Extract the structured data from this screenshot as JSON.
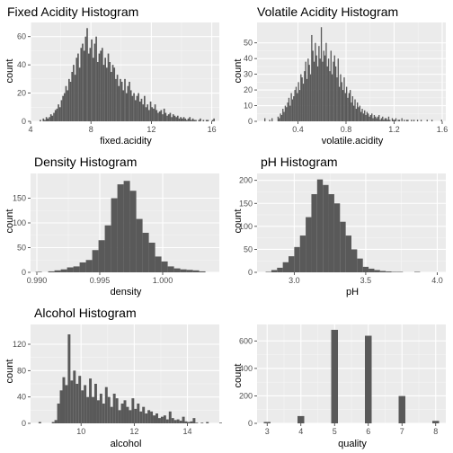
{
  "chart_data": [
    {
      "type": "bar",
      "title": "Fixed Acidity Histogram",
      "xlabel": "fixed.acidity",
      "ylabel": "count",
      "xlim": [
        4.0,
        16.5
      ],
      "ylim": [
        0,
        70
      ],
      "xticks": [
        "4",
        "8",
        "12",
        "16"
      ],
      "xtick_values": [
        4,
        8,
        12,
        16
      ],
      "yticks": [
        "0",
        "20",
        "40",
        "60"
      ],
      "ytick_values": [
        0,
        20,
        40,
        60
      ],
      "bin_width": 0.1,
      "bins_start": 4.6,
      "counts": [
        1,
        0,
        2,
        1,
        3,
        2,
        3,
        5,
        4,
        6,
        8,
        9,
        12,
        10,
        15,
        18,
        20,
        25,
        22,
        30,
        28,
        35,
        40,
        33,
        45,
        48,
        38,
        52,
        55,
        50,
        60,
        66,
        48,
        52,
        58,
        45,
        55,
        60,
        42,
        48,
        50,
        52,
        40,
        45,
        38,
        48,
        42,
        35,
        40,
        38,
        30,
        33,
        25,
        30,
        28,
        22,
        30,
        20,
        25,
        28,
        22,
        18,
        20,
        15,
        18,
        20,
        14,
        16,
        12,
        18,
        10,
        12,
        8,
        14,
        10,
        9,
        12,
        8,
        6,
        7,
        8,
        5,
        9,
        6,
        4,
        5,
        6,
        3,
        5,
        4,
        3,
        4,
        2,
        3,
        2,
        3,
        2,
        1,
        2,
        3,
        1,
        2,
        1,
        1,
        0,
        1,
        2,
        0,
        1,
        0,
        1,
        1,
        0,
        0,
        1,
        2,
        0
      ]
    },
    {
      "type": "bar",
      "title": "Volatile Acidity Histogram",
      "xlabel": "volatile.acidity",
      "ylabel": "count",
      "xlim": [
        0.06,
        1.63
      ],
      "ylim": [
        0,
        63
      ],
      "xticks": [
        "0.4",
        "0.8",
        "1.2",
        "1.6"
      ],
      "xtick_values": [
        0.4,
        0.8,
        1.2,
        1.6
      ],
      "yticks": [
        "0",
        "10",
        "20",
        "30",
        "40",
        "50"
      ],
      "ytick_values": [
        0,
        10,
        20,
        30,
        40,
        50
      ],
      "bin_width": 0.01,
      "bins_start": 0.12,
      "counts": [
        2,
        0,
        0,
        0,
        1,
        0,
        2,
        0,
        0,
        0,
        0,
        3,
        2,
        5,
        4,
        8,
        6,
        10,
        9,
        12,
        15,
        10,
        18,
        14,
        16,
        20,
        22,
        18,
        25,
        20,
        30,
        28,
        24,
        32,
        38,
        27,
        40,
        36,
        30,
        55,
        45,
        38,
        50,
        42,
        35,
        48,
        40,
        60,
        38,
        45,
        42,
        50,
        35,
        40,
        32,
        45,
        30,
        38,
        42,
        35,
        28,
        40,
        22,
        30,
        25,
        20,
        28,
        18,
        22,
        15,
        18,
        20,
        12,
        16,
        10,
        14,
        8,
        12,
        9,
        10,
        6,
        8,
        5,
        7,
        4,
        6,
        5,
        3,
        4,
        5,
        2,
        4,
        3,
        2,
        3,
        4,
        1,
        2,
        3,
        1,
        2,
        2,
        1,
        3,
        1,
        0,
        2,
        1,
        1,
        2,
        0,
        1,
        1,
        0,
        2,
        0,
        1,
        0,
        1,
        1,
        0,
        0,
        1,
        0,
        1,
        0,
        0,
        1,
        0,
        0,
        1,
        0,
        0,
        0,
        0,
        1,
        0,
        0,
        0,
        1,
        0,
        0,
        0,
        0,
        0,
        0,
        0,
        1
      ]
    },
    {
      "type": "bar",
      "title": "Density Histogram",
      "xlabel": "density",
      "ylabel": "count",
      "xlim": [
        0.9895,
        1.0045
      ],
      "ylim": [
        0,
        200
      ],
      "xticks": [
        "0.990",
        "0.995",
        "1.000"
      ],
      "xtick_values": [
        0.99,
        0.995,
        1.0
      ],
      "yticks": [
        "0",
        "50",
        "100",
        "150"
      ],
      "ytick_values": [
        0,
        50,
        100,
        150
      ],
      "bin_width": 0.0005,
      "bins_start": 0.9899,
      "counts": [
        1,
        0,
        2,
        4,
        6,
        10,
        12,
        20,
        25,
        45,
        65,
        95,
        150,
        178,
        185,
        165,
        108,
        80,
        60,
        32,
        22,
        12,
        8,
        6,
        5,
        4,
        2
      ]
    },
    {
      "type": "bar",
      "title": "pH Histogram",
      "xlabel": "pH",
      "ylabel": "count",
      "xlim": [
        2.74,
        4.06
      ],
      "ylim": [
        0,
        215
      ],
      "xticks": [
        "3.0",
        "3.5",
        "4.0"
      ],
      "xtick_values": [
        3.0,
        3.5,
        4.0
      ],
      "yticks": [
        "0",
        "50",
        "100",
        "150",
        "200"
      ],
      "ytick_values": [
        0,
        50,
        100,
        150,
        200
      ],
      "bin_width": 0.04,
      "bins_start": 2.8,
      "counts": [
        1,
        5,
        10,
        22,
        35,
        55,
        80,
        120,
        170,
        202,
        190,
        170,
        150,
        110,
        80,
        50,
        30,
        12,
        8,
        5,
        3,
        2,
        1,
        1,
        0,
        0,
        1,
        0
      ]
    },
    {
      "type": "bar",
      "title": "Alcohol Histogram",
      "xlabel": "alcohol",
      "ylabel": "count",
      "xlim": [
        8.1,
        15.2
      ],
      "ylim": [
        0,
        150
      ],
      "xticks": [
        "10",
        "12",
        "14"
      ],
      "xtick_values": [
        10,
        12,
        14
      ],
      "yticks": [
        "0",
        "40",
        "80",
        "120"
      ],
      "ytick_values": [
        0,
        40,
        80,
        120
      ],
      "bin_width": 0.1,
      "bins_start": 8.4,
      "counts": [
        2,
        0,
        0,
        0,
        0,
        2,
        5,
        30,
        50,
        70,
        58,
        135,
        65,
        80,
        60,
        72,
        50,
        58,
        40,
        68,
        40,
        60,
        35,
        45,
        30,
        55,
        40,
        25,
        45,
        38,
        20,
        30,
        35,
        25,
        20,
        38,
        22,
        30,
        18,
        25,
        15,
        20,
        18,
        12,
        15,
        8,
        10,
        12,
        6,
        18,
        8,
        5,
        6,
        4,
        10,
        3,
        2,
        3,
        8,
        1,
        0,
        1,
        0,
        2,
        0,
        0,
        0,
        0,
        1
      ]
    },
    {
      "type": "bar",
      "title": "",
      "xlabel": "quality",
      "ylabel": "count",
      "xlim": [
        2.7,
        8.3
      ],
      "ylim": [
        0,
        720
      ],
      "xticks": [
        "3",
        "4",
        "5",
        "6",
        "7",
        "8"
      ],
      "xtick_values": [
        3,
        4,
        5,
        6,
        7,
        8
      ],
      "yticks": [
        "0",
        "200",
        "400",
        "600"
      ],
      "ytick_values": [
        0,
        200,
        400,
        600
      ],
      "bin_width": 0.2,
      "bins_center": [
        3,
        4,
        5,
        6,
        7,
        8
      ],
      "counts": [
        10,
        53,
        681,
        638,
        199,
        18
      ]
    }
  ]
}
